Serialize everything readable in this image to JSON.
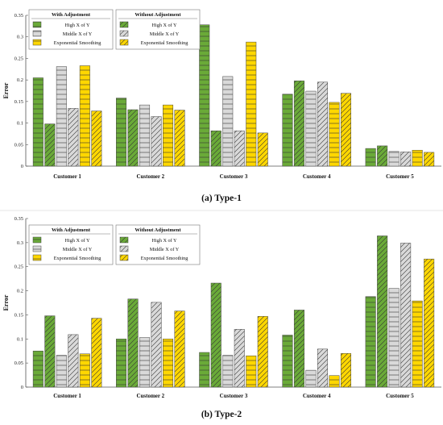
{
  "chart_data": [
    {
      "type": "bar",
      "caption": "(a) Type-1",
      "ylabel": "Error",
      "ylim": [
        0,
        0.35
      ],
      "yticks": [
        "0",
        "0.05",
        "0.1",
        "0.15",
        "0.2",
        "0.25",
        "0.3",
        "0.35"
      ],
      "categories": [
        "Customer 1",
        "Customer 2",
        "Customer 3",
        "Customer 4",
        "Customer 5"
      ],
      "legend_groups": [
        "With Adjustment",
        "Without Adjustment"
      ],
      "series": [
        {
          "name": "High X of Y",
          "group": "With Adjustment",
          "values": [
            0.205,
            0.158,
            0.328,
            0.167,
            0.041
          ]
        },
        {
          "name": "High X of Y",
          "group": "Without Adjustment",
          "values": [
            0.098,
            0.131,
            0.082,
            0.198,
            0.047
          ]
        },
        {
          "name": "Middle X of Y",
          "group": "With Adjustment",
          "values": [
            0.231,
            0.142,
            0.208,
            0.174,
            0.034
          ]
        },
        {
          "name": "Middle X of Y",
          "group": "Without Adjustment",
          "values": [
            0.134,
            0.115,
            0.082,
            0.195,
            0.033
          ]
        },
        {
          "name": "Exponential Smoothing",
          "group": "With Adjustment",
          "values": [
            0.233,
            0.142,
            0.288,
            0.148,
            0.037
          ]
        },
        {
          "name": "Exponential Smoothing",
          "group": "Without Adjustment",
          "values": [
            0.128,
            0.13,
            0.077,
            0.169,
            0.032
          ]
        }
      ]
    },
    {
      "type": "bar",
      "caption": "(b) Type-2",
      "ylabel": "Error",
      "ylim": [
        0,
        0.35
      ],
      "yticks": [
        "0",
        "0.05",
        "0.1",
        "0.15",
        "0.2",
        "0.25",
        "0.3",
        "0.35"
      ],
      "categories": [
        "Customer 1",
        "Customer 2",
        "Customer 3",
        "Customer 4",
        "Customer 5"
      ],
      "legend_groups": [
        "With Adjustment",
        "Without Adjustment"
      ],
      "series": [
        {
          "name": "High X of Y",
          "group": "With Adjustment",
          "values": [
            0.075,
            0.1,
            0.072,
            0.108,
            0.188
          ]
        },
        {
          "name": "High X of Y",
          "group": "Without Adjustment",
          "values": [
            0.148,
            0.183,
            0.216,
            0.16,
            0.314
          ]
        },
        {
          "name": "Middle X of Y",
          "group": "With Adjustment",
          "values": [
            0.066,
            0.103,
            0.066,
            0.035,
            0.205
          ]
        },
        {
          "name": "Middle X of Y",
          "group": "Without Adjustment",
          "values": [
            0.109,
            0.176,
            0.12,
            0.079,
            0.299
          ]
        },
        {
          "name": "Exponential Smoothing",
          "group": "With Adjustment",
          "values": [
            0.069,
            0.1,
            0.065,
            0.024,
            0.179
          ]
        },
        {
          "name": "Exponential Smoothing",
          "group": "Without Adjustment",
          "values": [
            0.143,
            0.158,
            0.147,
            0.07,
            0.266
          ]
        }
      ]
    }
  ],
  "colors": {
    "high": "#6aaa38",
    "middle": "#d9d9d9",
    "exponential": "#ffd700",
    "border": "#444444",
    "hatch": "#333333"
  },
  "bar_patterns": [
    "horizontal-lines",
    "diagonal-lines"
  ]
}
